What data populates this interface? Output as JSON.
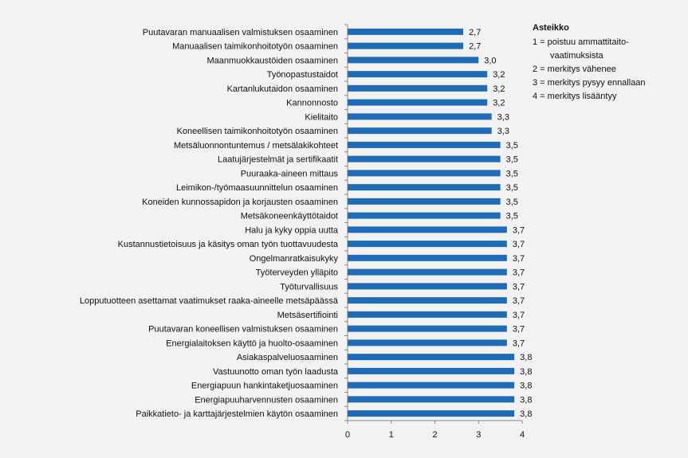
{
  "chart_data": {
    "type": "bar",
    "orientation": "horizontal",
    "title": "",
    "xlabel": "",
    "ylabel": "",
    "xlim": [
      0,
      4
    ],
    "xticks": [
      "0",
      "1",
      "2",
      "3",
      "4"
    ],
    "grid": false,
    "bar_color": "#1f6bb5",
    "categories": [
      "Puutavaran manuaalisen valmistuksen osaaminen",
      "Manuaalisen taimikonhoitotyön osaaminen",
      "Maanmuokkaustöiden osaaminen",
      "Työnopastustaidot",
      "Kartanlukutaidon osaaminen",
      "Kannonnosto",
      "Kielitaito",
      "Koneellisen taimikonhoitotyön osaaminen",
      "Metsäluonnontuntemus / metsälakikohteet",
      "Laatujärjestelmät ja sertifikaatit",
      "Puuraaka-aineen mittaus",
      "Leimikon-/työmaasuunnittelun osaaminen",
      "Koneiden kunnossapidon ja korjausten osaaminen",
      "Metsäkoneenkäyttötaidot",
      "Halu ja kyky oppia uutta",
      "Kustannustietoisuus ja käsitys oman työn tuottavuudesta",
      "Ongelmanratkaisukyky",
      "Työterveyden ylläpito",
      "Työturvallisuus",
      "Lopputuotteen asettamat vaatimukset raaka-aineelle metsäpäässä",
      "Metsäsertifiointi",
      "Puutavaran koneellisen valmistuksen osaaminen",
      "Energialaitoksen käyttö ja huolto-osaaminen",
      "Asiakaspalveluosaaminen",
      "Vastuunotto oman työn laadusta",
      "Energiapuun hankintaketjuosaaminen",
      "Energiapuuharvennusten osaaminen",
      "Paikkatieto- ja karttajärjestelmien käytön osaaminen"
    ],
    "values": [
      2.65,
      2.65,
      3.0,
      3.2,
      3.2,
      3.2,
      3.3,
      3.3,
      3.5,
      3.5,
      3.5,
      3.5,
      3.5,
      3.5,
      3.65,
      3.65,
      3.65,
      3.65,
      3.65,
      3.65,
      3.65,
      3.65,
      3.65,
      3.82,
      3.82,
      3.82,
      3.82,
      3.82
    ],
    "value_labels": [
      "2,7",
      "2,7",
      "3,0",
      "3,2",
      "3,2",
      "3,2",
      "3,3",
      "3,3",
      "3,5",
      "3,5",
      "3,5",
      "3,5",
      "3,5",
      "3,5",
      "3,7",
      "3,7",
      "3,7",
      "3,7",
      "3,7",
      "3,7",
      "3,7",
      "3,7",
      "3,7",
      "3,8",
      "3,8",
      "3,8",
      "3,8",
      "3,8"
    ],
    "legend_placement": "right"
  },
  "legend": {
    "title": "Asteikko",
    "items": [
      {
        "key": "1 = ",
        "text": "poistuu ammattitaito-",
        "cont": "vaatimuksista"
      },
      {
        "key": "2 = ",
        "text": "merkitys vähenee",
        "cont": ""
      },
      {
        "key": "3 = ",
        "text": "merkitys pysyy ennallaan",
        "cont": ""
      },
      {
        "key": "4 = ",
        "text": "merkitys lisääntyy",
        "cont": ""
      }
    ]
  }
}
